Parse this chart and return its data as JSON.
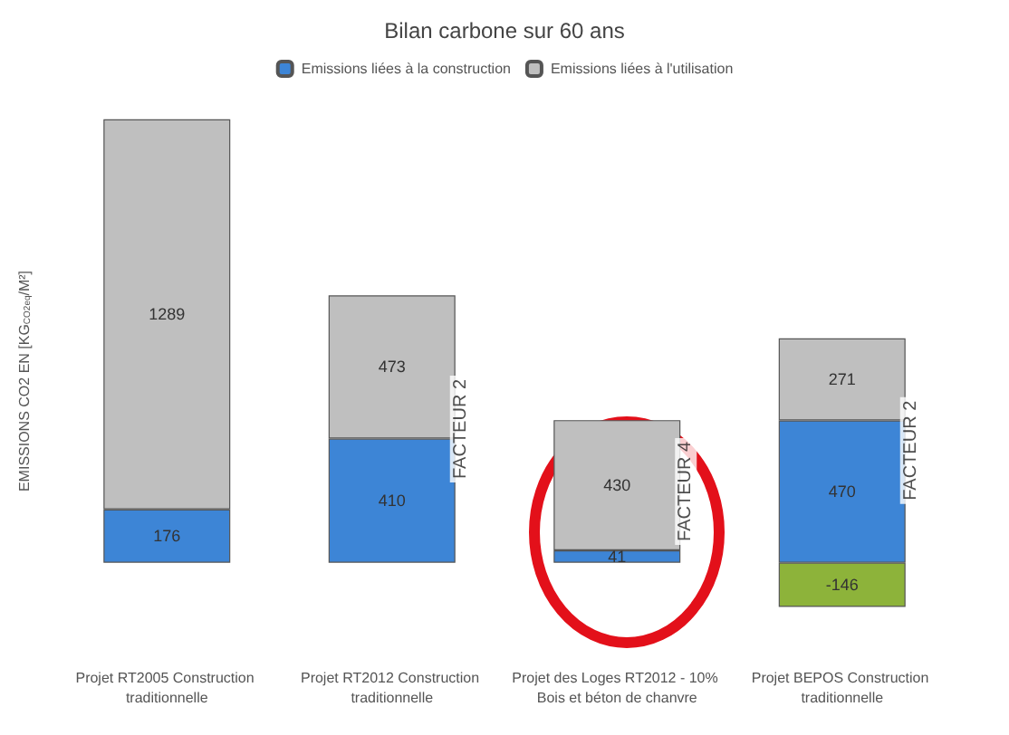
{
  "chart_data": {
    "type": "bar",
    "title": "Bilan carbone sur 60 ans",
    "ylabel": "EMISSIONS CO2 EN [KG$_{CO2eq}$/M²]",
    "categories": [
      "Projet RT2005 Construction traditionnelle",
      "Projet RT2012 Construction traditionnelle",
      "Projet des Loges RT2012 - 10% Bois et béton de chanvre",
      "Projet BEPOS Construction traditionnelle"
    ],
    "stacked": true,
    "data_labels": true,
    "legend": "top",
    "series": [
      {
        "name": "Emissions liées à la construction",
        "color": "#3d85d6",
        "values": [
          176,
          410,
          41,
          470
        ]
      },
      {
        "name": "Emissions liées à l'utilisation",
        "color": "#bfbfbf",
        "values": [
          1289,
          473,
          430,
          271
        ]
      },
      {
        "color": "#8db33a",
        "values": [
          null,
          null,
          null,
          -146
        ]
      }
    ],
    "annotations": [
      "FACTEUR 2",
      "FACTEUR 4",
      "FACTEUR 2"
    ]
  }
}
